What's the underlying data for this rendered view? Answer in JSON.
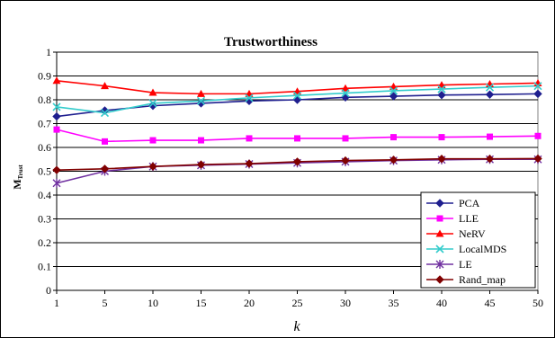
{
  "chart_data": {
    "type": "line",
    "title": "Trustworthiness",
    "xlabel": "k",
    "ylabel": "M",
    "ylabel_sub": "Trust",
    "categories": [
      "1",
      "5",
      "10",
      "15",
      "20",
      "25",
      "30",
      "35",
      "40",
      "45",
      "50"
    ],
    "ylim": [
      0,
      1
    ],
    "yticks": [
      "0",
      "0.1",
      "0.2",
      "0.3",
      "0.4",
      "0.5",
      "0.6",
      "0.7",
      "0.8",
      "0.9",
      "1"
    ],
    "grid": "horizontal",
    "legend_position": "bottom-right",
    "series": [
      {
        "name": "PCA",
        "color": "#1f1f8f",
        "marker": "diamond",
        "values": [
          0.73,
          0.755,
          0.775,
          0.785,
          0.795,
          0.8,
          0.81,
          0.815,
          0.82,
          0.822,
          0.825
        ]
      },
      {
        "name": "LLE",
        "color": "#ff00ff",
        "marker": "square",
        "values": [
          0.675,
          0.625,
          0.63,
          0.63,
          0.638,
          0.638,
          0.638,
          0.643,
          0.643,
          0.645,
          0.648
        ]
      },
      {
        "name": "NeRV",
        "color": "#ff0000",
        "marker": "triangle",
        "values": [
          0.88,
          0.858,
          0.83,
          0.825,
          0.825,
          0.835,
          0.848,
          0.855,
          0.862,
          0.866,
          0.87
        ]
      },
      {
        "name": "LocalMDS",
        "color": "#33cccc",
        "marker": "x",
        "values": [
          0.77,
          0.745,
          0.785,
          0.795,
          0.808,
          0.818,
          0.828,
          0.838,
          0.845,
          0.852,
          0.858
        ]
      },
      {
        "name": "LE",
        "color": "#7030a0",
        "marker": "star",
        "values": [
          0.45,
          0.5,
          0.52,
          0.525,
          0.53,
          0.535,
          0.54,
          0.545,
          0.548,
          0.55,
          0.55
        ]
      },
      {
        "name": "Rand_map",
        "color": "#800000",
        "marker": "diamond",
        "values": [
          0.505,
          0.51,
          0.52,
          0.528,
          0.532,
          0.54,
          0.545,
          0.548,
          0.552,
          0.552,
          0.553
        ]
      }
    ]
  }
}
